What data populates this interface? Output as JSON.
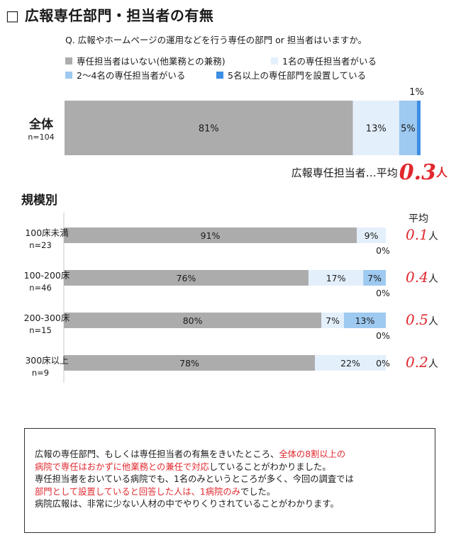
{
  "title": "□ 広報専任部門・担当者の有無",
  "question": "Q. 広報やホームページの運用などを行う専任の部門 or 担当者はいますか。",
  "legend": [
    {
      "label": "専任担当者はいない(他業務との兼務)",
      "color": "#acacac"
    },
    {
      "label": "1名の専任担当者がいる",
      "color": "#e3effb"
    },
    {
      "label": "2〜4名の専任担当者がいる",
      "color": "#9ec9f0"
    },
    {
      "label": "5名以上の専任部門を設置している",
      "color": "#3d8ee4"
    }
  ],
  "overall_avg": {
    "label": "広報専任担当者…平均",
    "value": "0.3",
    "unit": "人"
  },
  "section_label": "規模別",
  "avg_header": "平均",
  "chart_data": [
    {
      "type": "bar",
      "orientation": "horizontal",
      "stacked": true,
      "categories": [
        "全体"
      ],
      "category_notes": [
        "n=104"
      ],
      "series": [
        {
          "name": "専任担当者はいない(他業務との兼務)",
          "values": [
            81
          ],
          "labels": [
            "81%"
          ]
        },
        {
          "name": "1名の専任担当者がいる",
          "values": [
            13
          ],
          "labels": [
            "13%"
          ]
        },
        {
          "name": "2〜4名の専任担当者がいる",
          "values": [
            5
          ],
          "labels": [
            "5%"
          ]
        },
        {
          "name": "5名以上の専任部門を設置している",
          "values": [
            1
          ],
          "labels": [
            "1%"
          ]
        }
      ],
      "xlim": [
        0,
        100
      ]
    },
    {
      "type": "bar",
      "orientation": "horizontal",
      "stacked": true,
      "categories": [
        "100床未満",
        "100-200床",
        "200-300床",
        "300床以上"
      ],
      "category_notes": [
        "n=23",
        "n=46",
        "n=15",
        "n=9"
      ],
      "series": [
        {
          "name": "専任担当者はいない(他業務との兼務)",
          "values": [
            91,
            76,
            80,
            78
          ],
          "labels": [
            "91%",
            "76%",
            "80%",
            "78%"
          ]
        },
        {
          "name": "1名の専任担当者がいる",
          "values": [
            9,
            17,
            7,
            22
          ],
          "labels": [
            "9%",
            "17%",
            "7%",
            "22%"
          ]
        },
        {
          "name": "2〜4名の専任担当者がいる",
          "values": [
            0,
            7,
            13,
            0
          ],
          "labels": [
            "",
            "7%",
            "13%",
            "0%"
          ]
        },
        {
          "name": "5名以上の専任部門を設置している",
          "values": [
            0,
            0,
            0,
            0
          ],
          "labels": [
            "0%",
            "0%",
            "0%",
            ""
          ]
        }
      ],
      "averages": [
        {
          "value": "0.1",
          "unit": "人"
        },
        {
          "value": "0.4",
          "unit": "人"
        },
        {
          "value": "0.5",
          "unit": "人"
        },
        {
          "value": "0.2",
          "unit": "人"
        }
      ],
      "xlim": [
        0,
        100
      ]
    }
  ],
  "note": [
    [
      {
        "t": "広報の専任部門、もしくは専任担当者の有無をきいたところ、"
      },
      {
        "t": "全体の8割以上の",
        "red": true
      }
    ],
    [
      {
        "t": "病院で専任はおかずに他業務との兼任で対応",
        "red": true
      },
      {
        "t": "していることがわかりました。"
      }
    ],
    [
      {
        "t": "専任担当者をおいている病院でも、1名のみというところが多く、今回の調査では"
      }
    ],
    [
      {
        "t": "部門として設置していると回答した人は、1病院のみ",
        "red": true
      },
      {
        "t": "でした。"
      }
    ],
    [
      {
        "t": "病院広報は、非常に少ない人材の中でやりくりされていることがわかります。"
      }
    ]
  ]
}
